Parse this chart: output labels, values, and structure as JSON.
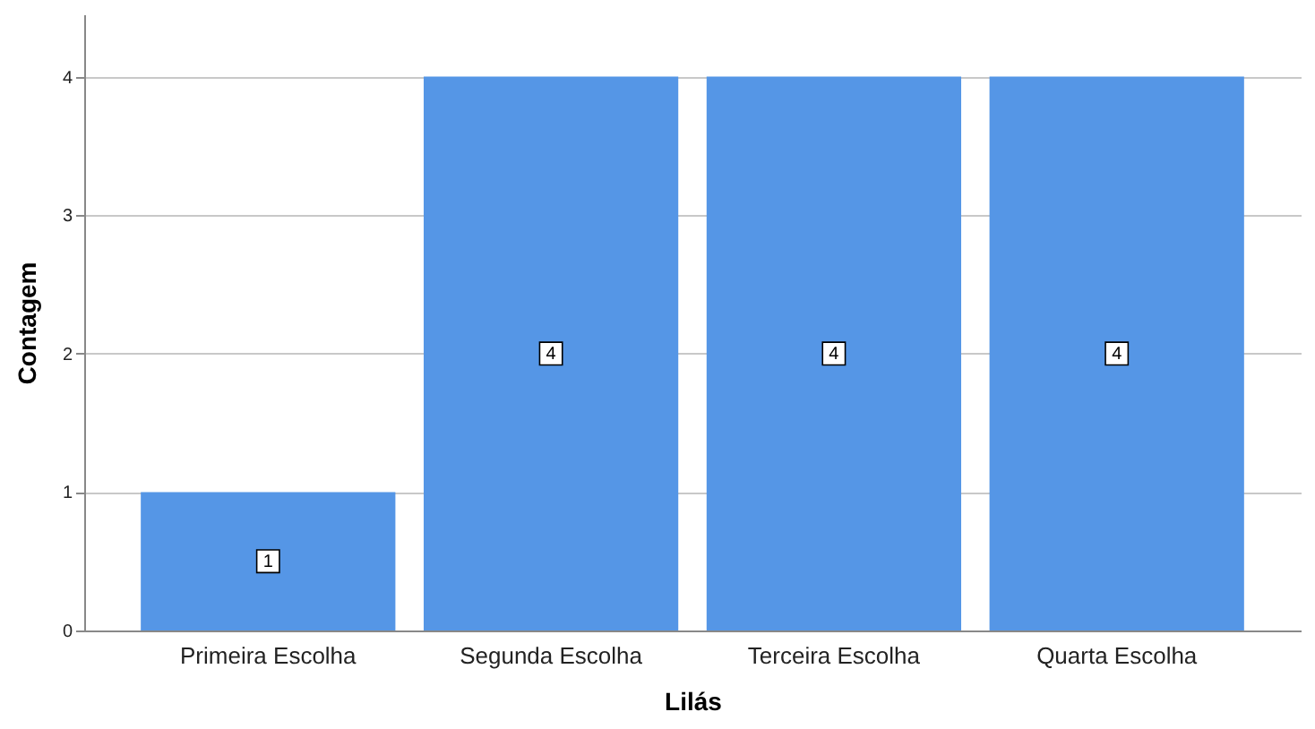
{
  "chart_data": {
    "type": "bar",
    "xlabel": "Lilás",
    "ylabel": "Contagem",
    "categories": [
      "Primeira Escolha",
      "Segunda Escolha",
      "Terceira Escolha",
      "Quarta Escolha"
    ],
    "values": [
      1,
      4,
      4,
      4
    ],
    "color": "#5596e6",
    "ylim": [
      0,
      4.45
    ],
    "yticks": [
      0,
      1,
      2,
      3,
      4
    ],
    "grid": "y",
    "data_labels": true
  }
}
